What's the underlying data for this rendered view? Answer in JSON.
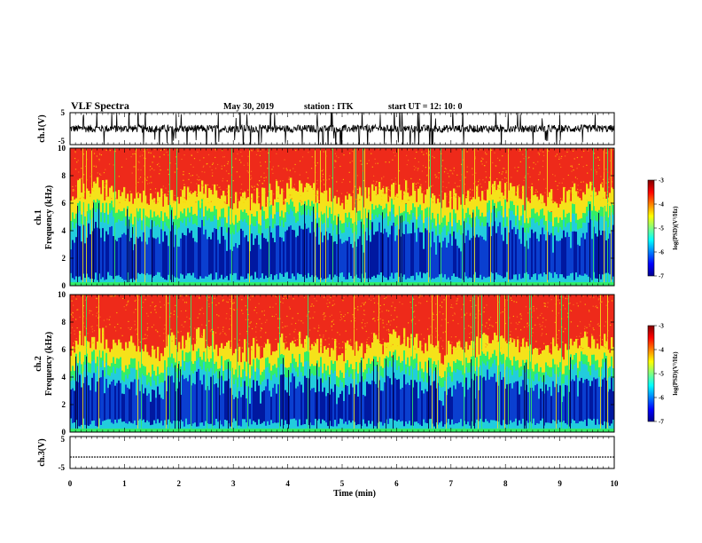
{
  "header": {
    "title": "VLF  Spectra",
    "date": "May 30, 2019",
    "station": "station : ITK",
    "start_ut": "start  UT  =   12: 10: 0"
  },
  "colors": {
    "jet": [
      "#00008f",
      "#0000ff",
      "#0080ff",
      "#00ffff",
      "#80ff80",
      "#ffff00",
      "#ff8000",
      "#ff0000",
      "#800000"
    ],
    "trace": "#000000",
    "spectro_low": "#0a3fd0",
    "spectro_mid": "#22ccdd",
    "spectro_green": "#33ee66",
    "spectro_yellow": "#f5e21a",
    "spectro_high": "#ee2a1a"
  },
  "chart_data": [
    {
      "type": "line",
      "panel": "ch1-waveform",
      "ylabel": "ch.1(V)",
      "ylim": [
        -5,
        5
      ],
      "y_ticks": [
        "5",
        "-5"
      ],
      "xlim": [
        0,
        10
      ],
      "description_of_values": "noisy waveform centered near 0 V with frequent spikes"
    },
    {
      "type": "heatmap",
      "panel": "ch1-spectrogram",
      "ylabel": "ch.1\nFrequency  (kHz)",
      "ylabel_lines": [
        "ch.1",
        "Frequency  (kHz)"
      ],
      "ylim": [
        0,
        10
      ],
      "y_ticks": [
        "0",
        "2",
        "4",
        "6",
        "8",
        "10"
      ],
      "xlim": [
        0,
        10
      ],
      "colorbar": {
        "label": "log(PSD)(V²/Hz)",
        "range": [
          -7,
          -3
        ],
        "ticks": [
          "-3",
          "-4",
          "-5",
          "-6",
          "-7"
        ]
      },
      "bands": [
        {
          "from_khz": 0,
          "to_khz": 4.5,
          "level": "low",
          "log_psd": -6.3
        },
        {
          "from_khz": 4.5,
          "to_khz": 6,
          "level": "mid",
          "log_psd": -5.0
        },
        {
          "from_khz": 6,
          "to_khz": 10,
          "level": "high",
          "log_psd": -3.4
        }
      ]
    },
    {
      "type": "heatmap",
      "panel": "ch2-spectrogram",
      "ylabel_lines": [
        "ch.2",
        "Frequency  (kHz)"
      ],
      "ylim": [
        0,
        10
      ],
      "y_ticks": [
        "0",
        "2",
        "4",
        "6",
        "8",
        "10"
      ],
      "xlim": [
        0,
        10
      ],
      "colorbar": {
        "label": "log(PSD)(V²/Hz)",
        "range": [
          -7,
          -3
        ],
        "ticks": [
          "-3",
          "-4",
          "-5",
          "-6",
          "-7"
        ]
      },
      "bands": [
        {
          "from_khz": 0,
          "to_khz": 4.3,
          "level": "low",
          "log_psd": -6.1
        },
        {
          "from_khz": 4.3,
          "to_khz": 5.5,
          "level": "mid",
          "log_psd": -5.0
        },
        {
          "from_khz": 5.5,
          "to_khz": 10,
          "level": "high",
          "log_psd": -3.4
        }
      ]
    },
    {
      "type": "line",
      "panel": "ch3-waveform",
      "ylabel": "ch.3(V)",
      "ylim": [
        -5,
        5
      ],
      "y_ticks": [
        "5",
        "-5"
      ],
      "xlim": [
        0,
        10
      ],
      "xlabel": "Time  (min)",
      "x_ticks": [
        "0",
        "1",
        "2",
        "3",
        "4",
        "5",
        "6",
        "7",
        "8",
        "9",
        "10"
      ],
      "constant_value": -1.4
    }
  ]
}
